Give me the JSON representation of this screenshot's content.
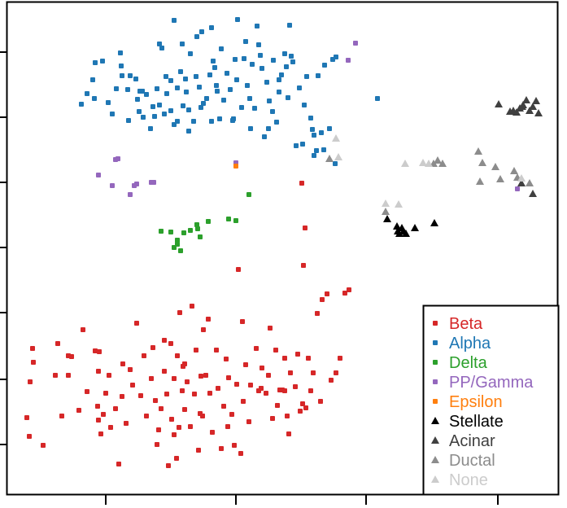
{
  "chart_data": {
    "type": "scatter",
    "title": "",
    "xlabel": "",
    "ylabel": "",
    "grid": false,
    "legend_position": "bottom-right",
    "xlim": [
      0,
      680
    ],
    "ylim": [
      0,
      600
    ],
    "x_ticks": [
      130,
      290,
      450,
      612
    ],
    "y_ticks": [
      64,
      144,
      226,
      306,
      386,
      466,
      546
    ],
    "series": [
      {
        "name": "Beta",
        "marker": "square",
        "color": "#d62728",
        "points": [
          [
            33,
            97
          ],
          [
            41,
            165
          ],
          [
            37,
            141
          ],
          [
            53,
            63
          ],
          [
            68,
            149
          ],
          [
            71,
            188
          ],
          [
            76,
            99
          ],
          [
            84,
            149
          ],
          [
            84,
            173
          ],
          [
            102,
            205
          ],
          [
            107,
            129
          ],
          [
            117,
            179
          ],
          [
            121,
            94
          ],
          [
            124,
            77
          ],
          [
            121,
            154
          ],
          [
            127,
            101
          ],
          [
            134,
            149
          ],
          [
            130,
            127
          ],
          [
            136,
            85
          ],
          [
            142,
            108
          ],
          [
            146,
            40
          ],
          [
            151,
            163
          ],
          [
            150,
            123
          ],
          [
            155,
            90
          ],
          [
            160,
            156
          ],
          [
            163,
            137
          ],
          [
            168,
            213
          ],
          [
            173,
            124
          ],
          [
            177,
            173
          ],
          [
            180,
            99
          ],
          [
            186,
            145
          ],
          [
            188,
            183
          ],
          [
            191,
            118
          ],
          [
            193,
            64
          ],
          [
            195,
            82
          ],
          [
            198,
            108
          ],
          [
            202,
            154
          ],
          [
            205,
            126
          ],
          [
            207,
            38
          ],
          [
            210,
            188
          ],
          [
            211,
            95
          ],
          [
            214,
            145
          ],
          [
            214,
            76
          ],
          [
            218,
            173
          ],
          [
            217,
            47
          ],
          [
            221,
            226
          ],
          [
            224,
            130
          ],
          [
            227,
            107
          ],
          [
            227,
            163
          ],
          [
            230,
            141
          ],
          [
            234,
            86
          ],
          [
            236,
            234
          ],
          [
            239,
            126
          ],
          [
            241,
            180
          ],
          [
            244,
            57
          ],
          [
            247,
            148
          ],
          [
            249,
            99
          ],
          [
            253,
            149
          ],
          [
            256,
            218
          ],
          [
            258,
            127
          ],
          [
            261,
            79
          ],
          [
            266,
            180
          ],
          [
            268,
            133
          ],
          [
            272,
            59
          ],
          [
            275,
            111
          ],
          [
            278,
            169
          ],
          [
            281,
            146
          ],
          [
            285,
            101
          ],
          [
            288,
            63
          ],
          [
            291,
            138
          ],
          [
            293,
            279
          ],
          [
            298,
            215
          ],
          [
            299,
            117
          ],
          [
            302,
            162
          ],
          [
            306,
            92
          ],
          [
            308,
            137
          ],
          [
            315,
            182
          ],
          [
            318,
            130
          ],
          [
            322,
            158
          ],
          [
            327,
            127
          ],
          [
            330,
            149
          ],
          [
            335,
            96
          ],
          [
            339,
            180
          ],
          [
            344,
            131
          ],
          [
            347,
            131
          ],
          [
            350,
            130
          ],
          [
            353,
            99
          ],
          [
            357,
            152
          ],
          [
            363,
            135
          ],
          [
            369,
            105
          ],
          [
            373,
            284
          ],
          [
            376,
            109
          ],
          [
            379,
            170
          ],
          [
            382,
            130
          ],
          [
            385,
            152
          ],
          [
            390,
            225
          ],
          [
            394,
            117
          ],
          [
            396,
            242
          ],
          [
            402,
            249
          ],
          [
            407,
            143
          ],
          [
            413,
            152
          ],
          [
            418,
            170
          ],
          [
            424,
            250
          ],
          [
            429,
            254
          ],
          [
            40,
            182
          ],
          [
            36,
            74
          ],
          [
            88,
            172
          ],
          [
            97,
            106
          ],
          [
            120,
            111
          ],
          [
            122,
            178
          ],
          [
            202,
            192
          ],
          [
            220,
            85
          ],
          [
            225,
            160
          ],
          [
            246,
            102
          ],
          [
            250,
            205
          ],
          [
            280,
            86
          ],
          [
            296,
            53
          ],
          [
            321,
            133
          ],
          [
            332,
            207
          ],
          [
            341,
            112
          ],
          [
            350,
            170
          ],
          [
            355,
            77
          ],
          [
            366,
            175
          ],
          [
            371,
            385
          ],
          [
            372,
            114
          ],
          [
            375,
            330
          ]
        ]
      },
      {
        "name": "Alpha",
        "marker": "square",
        "color": "#1f77b4",
        "points": [
          [
            100,
            482
          ],
          [
            114,
            512
          ],
          [
            117,
            533
          ],
          [
            126,
            535
          ],
          [
            133,
            484
          ],
          [
            138,
            470
          ],
          [
            143,
            501
          ],
          [
            149,
            529
          ],
          [
            150,
            517
          ],
          [
            157,
            500
          ],
          [
            160,
            517
          ],
          [
            167,
            513
          ],
          [
            171,
            473
          ],
          [
            175,
            498
          ],
          [
            180,
            494
          ],
          [
            185,
            452
          ],
          [
            188,
            479
          ],
          [
            190,
            467
          ],
          [
            193,
            501
          ],
          [
            196,
            481
          ],
          [
            199,
            551
          ],
          [
            204,
            516
          ],
          [
            205,
            495
          ],
          [
            210,
            474
          ],
          [
            214,
            457
          ],
          [
            214,
            585
          ],
          [
            218,
            502
          ],
          [
            222,
            522
          ],
          [
            225,
            480
          ],
          [
            229,
            497
          ],
          [
            232,
            475
          ],
          [
            234,
            544
          ],
          [
            238,
            461
          ],
          [
            241,
            516
          ],
          [
            242,
            565
          ],
          [
            245,
            503
          ],
          [
            247,
            478
          ],
          [
            250,
            483
          ],
          [
            254,
            489
          ],
          [
            258,
            518
          ],
          [
            262,
            535
          ],
          [
            264,
            527
          ],
          [
            267,
            498
          ],
          [
            270,
            464
          ],
          [
            272,
            550
          ],
          [
            275,
            487
          ],
          [
            279,
            520
          ],
          [
            283,
            500
          ],
          [
            287,
            464
          ],
          [
            289,
            537
          ],
          [
            292,
            586
          ],
          [
            297,
            478
          ],
          [
            300,
            538
          ],
          [
            304,
            505
          ],
          [
            307,
            489
          ],
          [
            310,
            531
          ],
          [
            313,
            477
          ],
          [
            318,
            555
          ],
          [
            322,
            526
          ],
          [
            325,
            442
          ],
          [
            328,
            509
          ],
          [
            331,
            486
          ],
          [
            336,
            536
          ],
          [
            340,
            460
          ],
          [
            343,
            497
          ],
          [
            346,
            518
          ],
          [
            350,
            544
          ],
          [
            352,
            528
          ],
          [
            356,
            579
          ],
          [
            360,
            534
          ],
          [
            364,
            431
          ],
          [
            368,
            502
          ],
          [
            372,
            433
          ],
          [
            377,
            516
          ],
          [
            382,
            465
          ],
          [
            386,
            444
          ],
          [
            389,
            425
          ],
          [
            391,
            517
          ],
          [
            395,
            447
          ],
          [
            399,
            530
          ],
          [
            405,
            452
          ],
          [
            409,
            537
          ],
          [
            413,
            540
          ],
          [
            464,
            489
          ],
          [
            107,
            495
          ],
          [
            116,
            489
          ],
          [
            148,
            545
          ],
          [
            158,
            462
          ],
          [
            172,
            498
          ],
          [
            176,
            466
          ],
          [
            196,
            556
          ],
          [
            210,
            511
          ],
          [
            228,
            513
          ],
          [
            248,
            571
          ],
          [
            260,
            576
          ],
          [
            266,
            505
          ],
          [
            286,
            462
          ],
          [
            302,
            559
          ],
          [
            316,
            578
          ],
          [
            320,
            542
          ],
          [
            335,
            473
          ],
          [
            343,
            512
          ],
          [
            358,
            541
          ],
          [
            374,
            481
          ],
          [
            386,
            419
          ],
          [
            412,
            409
          ],
          [
            398,
            426
          ],
          [
            202,
            470
          ],
          [
            224,
            556
          ],
          [
            260,
            461
          ],
          [
            308,
            452
          ],
          [
            330,
            452
          ],
          [
            354,
            490
          ],
          [
            384,
            451
          ],
          [
            169,
            488
          ],
          [
            218,
            461
          ],
          [
            291,
            512
          ],
          [
            232,
            449
          ]
        ]
      },
      {
        "name": "Delta",
        "marker": "square",
        "color": "#2ca02c",
        "points": [
          [
            198,
            326
          ],
          [
            210,
            325
          ],
          [
            214,
            306
          ],
          [
            218,
            310
          ],
          [
            222,
            302
          ],
          [
            226,
            324
          ],
          [
            234,
            327
          ],
          [
            242,
            334
          ],
          [
            243,
            329
          ],
          [
            246,
            319
          ],
          [
            256,
            338
          ],
          [
            281,
            341
          ],
          [
            290,
            339
          ],
          [
            306,
            371
          ],
          [
            218,
            315
          ]
        ]
      },
      {
        "name": "PP/Gamma",
        "marker": "square",
        "color": "#9467bd",
        "points": [
          [
            121,
            395
          ],
          [
            138,
            382
          ],
          [
            142,
            414
          ],
          [
            145,
            415
          ],
          [
            160,
            371
          ],
          [
            165,
            382
          ],
          [
            168,
            384
          ],
          [
            186,
            386
          ],
          [
            189,
            386
          ],
          [
            290,
            410
          ],
          [
            428,
            536
          ],
          [
            437,
            557
          ],
          [
            636,
            378
          ]
        ]
      },
      {
        "name": "Epsilon",
        "marker": "square",
        "color": "#ff7f0e",
        "points": [
          [
            290,
            406
          ]
        ]
      },
      {
        "name": "Stellate",
        "marker": "triangle",
        "color": "#000000",
        "points": [
          [
            476,
            341
          ],
          [
            488,
            332
          ],
          [
            489,
            326
          ],
          [
            491,
            323
          ],
          [
            494,
            330
          ],
          [
            496,
            326
          ],
          [
            499,
            323
          ],
          [
            510,
            330
          ],
          [
            534,
            336
          ]
        ]
      },
      {
        "name": "Acinar",
        "marker": "triangle",
        "color": "#404040",
        "points": [
          [
            613,
            482
          ],
          [
            627,
            473
          ],
          [
            631,
            474
          ],
          [
            635,
            472
          ],
          [
            639,
            477
          ],
          [
            643,
            481
          ],
          [
            647,
            487
          ],
          [
            651,
            474
          ],
          [
            655,
            479
          ],
          [
            659,
            486
          ],
          [
            662,
            471
          ],
          [
            642,
            479
          ],
          [
            655,
            372
          ],
          [
            641,
            385
          ]
        ]
      },
      {
        "name": "Ductal",
        "marker": "triangle",
        "color": "#8c8c8c",
        "points": [
          [
            405,
            415
          ],
          [
            474,
            350
          ],
          [
            533,
            409
          ],
          [
            538,
            413
          ],
          [
            544,
            409
          ],
          [
            588,
            424
          ],
          [
            593,
            410
          ],
          [
            590,
            387
          ],
          [
            609,
            405
          ],
          [
            615,
            390
          ],
          [
            632,
            400
          ],
          [
            636,
            392
          ],
          [
            651,
            385
          ]
        ]
      },
      {
        "name": "None",
        "marker": "triangle",
        "color": "#cccccc",
        "points": [
          [
            413,
            440
          ],
          [
            416,
            417
          ],
          [
            474,
            360
          ],
          [
            490,
            359
          ],
          [
            498,
            409
          ],
          [
            520,
            410
          ],
          [
            527,
            409
          ],
          [
            641,
            391
          ]
        ]
      }
    ]
  }
}
